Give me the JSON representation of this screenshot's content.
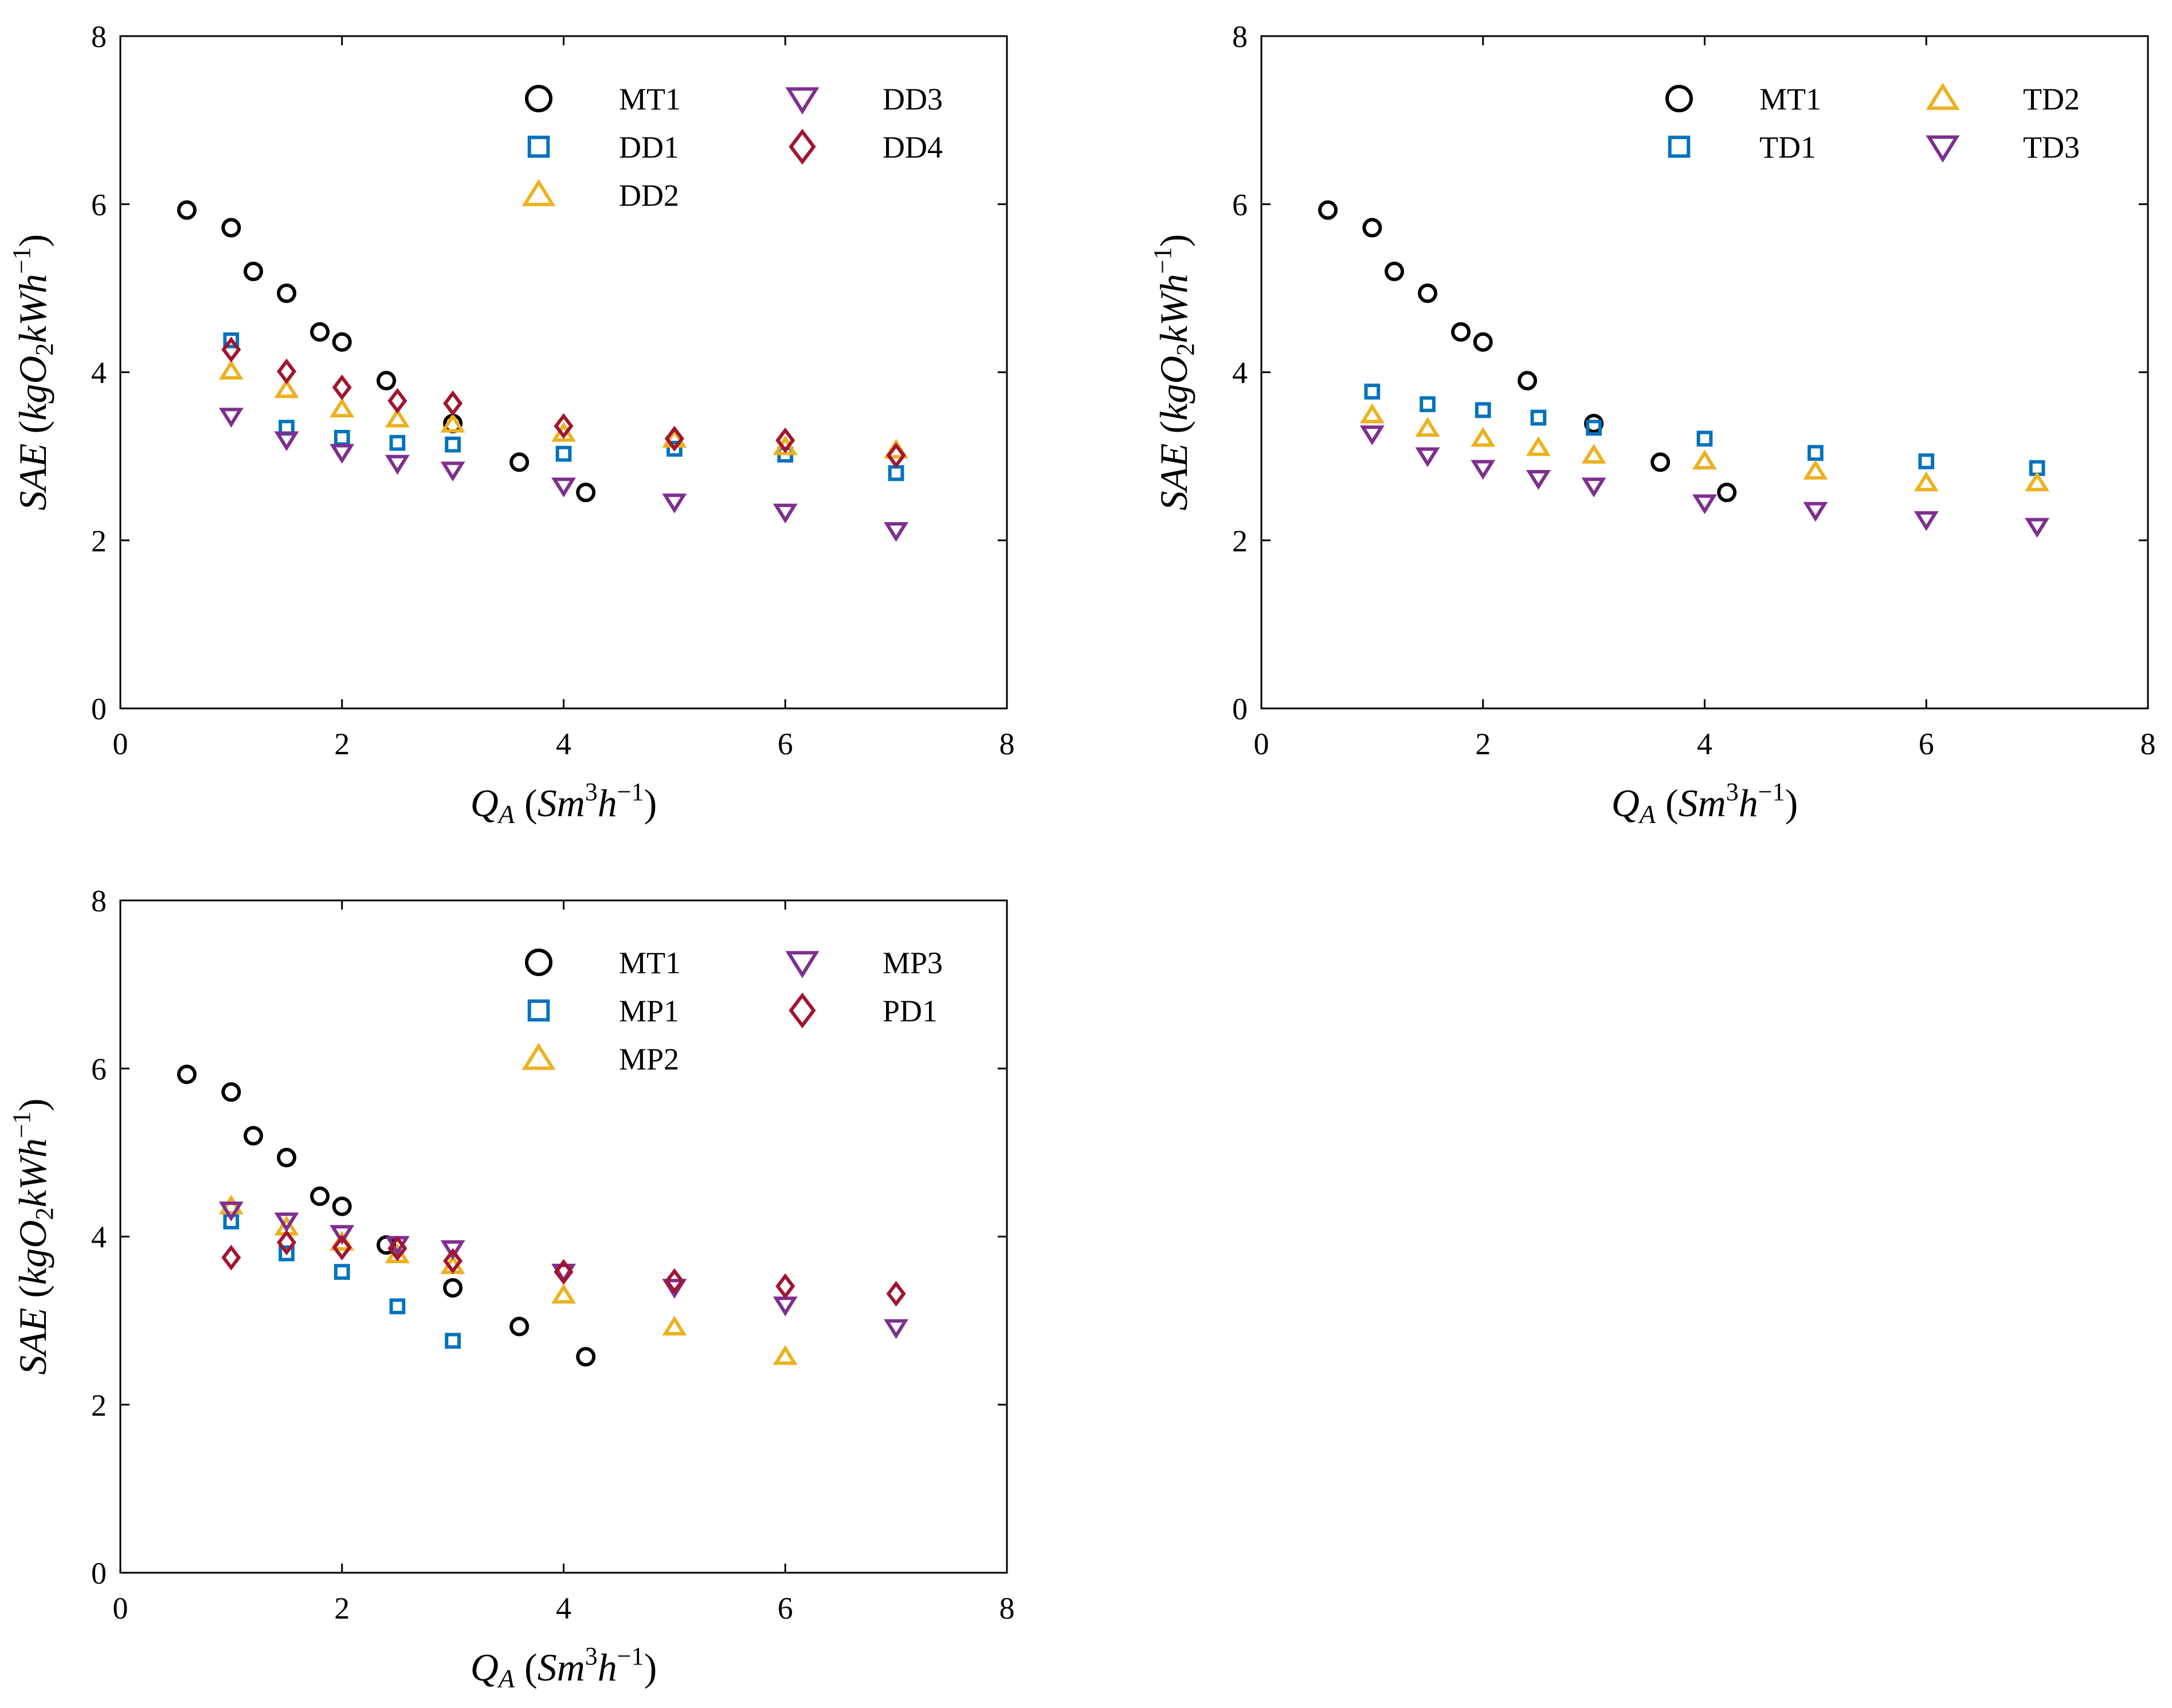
{
  "chart_data": [
    {
      "type": "scatter",
      "panel": "top-left",
      "title": "",
      "xlabel_main": "Q",
      "xlabel_sub": "A",
      "xlabel_unit": "Sm",
      "xlabel_unit_exp": "3",
      "xlabel_unit2": "h",
      "xlabel_unit2_exp": "−1",
      "ylabel_main": "SAE",
      "ylabel_unit": "kgO",
      "ylabel_unit_sub": "2",
      "ylabel_unit2": "kWh",
      "ylabel_unit2_exp": "−1",
      "xlim": [
        0,
        8
      ],
      "ylim": [
        0,
        8
      ],
      "xticks": [
        "0",
        "2",
        "4",
        "6",
        "8"
      ],
      "yticks": [
        "0",
        "2",
        "4",
        "6",
        "8"
      ],
      "legend_position": "top-right",
      "legend_columns": [
        [
          {
            "name": "MT1",
            "marker": "circle",
            "color": "#000000"
          },
          {
            "name": "DD1",
            "marker": "square",
            "color": "#0072BD"
          },
          {
            "name": "DD2",
            "marker": "triangle-up",
            "color": "#EDB120"
          }
        ],
        [
          {
            "name": "DD3",
            "marker": "triangle-down",
            "color": "#7E2F8E"
          },
          {
            "name": "DD4",
            "marker": "diamond",
            "color": "#A2142F"
          }
        ]
      ],
      "series": [
        {
          "name": "MT1",
          "marker": "circle",
          "color": "#000000",
          "x": [
            0.6,
            1.0,
            1.2,
            1.5,
            1.8,
            2.0,
            2.4,
            3.0,
            3.6,
            4.2
          ],
          "y": [
            5.93,
            5.72,
            5.2,
            4.94,
            4.48,
            4.36,
            3.9,
            3.39,
            2.93,
            2.57
          ]
        },
        {
          "name": "DD1",
          "marker": "square",
          "color": "#0072BD",
          "x": [
            1.0,
            1.5,
            2.0,
            2.5,
            3.0,
            4.0,
            5.0,
            6.0,
            7.0
          ],
          "y": [
            4.38,
            3.34,
            3.22,
            3.16,
            3.14,
            3.03,
            3.09,
            3.02,
            2.8
          ]
        },
        {
          "name": "DD2",
          "marker": "triangle-up",
          "color": "#EDB120",
          "x": [
            1.0,
            1.5,
            2.0,
            2.5,
            3.0,
            4.0,
            5.0,
            6.0,
            7.0
          ],
          "y": [
            4.01,
            3.79,
            3.56,
            3.44,
            3.38,
            3.27,
            3.2,
            3.11,
            3.07
          ]
        },
        {
          "name": "DD3",
          "marker": "triangle-down",
          "color": "#7E2F8E",
          "x": [
            1.0,
            1.5,
            2.0,
            2.5,
            3.0,
            4.0,
            5.0,
            6.0,
            7.0
          ],
          "y": [
            3.48,
            3.2,
            3.05,
            2.92,
            2.84,
            2.65,
            2.46,
            2.34,
            2.12
          ]
        },
        {
          "name": "DD4",
          "marker": "diamond",
          "color": "#A2142F",
          "x": [
            1.0,
            1.5,
            2.0,
            2.5,
            3.0,
            4.0,
            5.0,
            6.0,
            7.0
          ],
          "y": [
            4.27,
            4.01,
            3.82,
            3.66,
            3.63,
            3.36,
            3.21,
            3.19,
            3.01
          ]
        }
      ]
    },
    {
      "type": "scatter",
      "panel": "top-right",
      "title": "",
      "xlabel_main": "Q",
      "xlabel_sub": "A",
      "xlabel_unit": "Sm",
      "xlabel_unit_exp": "3",
      "xlabel_unit2": "h",
      "xlabel_unit2_exp": "−1",
      "ylabel_main": "SAE",
      "ylabel_unit": "kgO",
      "ylabel_unit_sub": "2",
      "ylabel_unit2": "kWh",
      "ylabel_unit2_exp": "−1",
      "xlim": [
        0,
        8
      ],
      "ylim": [
        0,
        8
      ],
      "xticks": [
        "0",
        "2",
        "4",
        "6",
        "8"
      ],
      "yticks": [
        "0",
        "2",
        "4",
        "6",
        "8"
      ],
      "legend_position": "top-right",
      "legend_columns": [
        [
          {
            "name": "MT1",
            "marker": "circle",
            "color": "#000000"
          },
          {
            "name": "TD1",
            "marker": "square",
            "color": "#0072BD"
          }
        ],
        [
          {
            "name": "TD2",
            "marker": "triangle-up",
            "color": "#EDB120"
          },
          {
            "name": "TD3",
            "marker": "triangle-down",
            "color": "#7E2F8E"
          }
        ]
      ],
      "series": [
        {
          "name": "MT1",
          "marker": "circle",
          "color": "#000000",
          "x": [
            0.6,
            1.0,
            1.2,
            1.5,
            1.8,
            2.0,
            2.4,
            3.0,
            3.6,
            4.2
          ],
          "y": [
            5.93,
            5.72,
            5.2,
            4.94,
            4.48,
            4.36,
            3.9,
            3.39,
            2.93,
            2.57
          ]
        },
        {
          "name": "TD1",
          "marker": "square",
          "color": "#0072BD",
          "x": [
            1.0,
            1.5,
            2.0,
            2.5,
            3.0,
            4.0,
            5.0,
            6.0,
            7.0
          ],
          "y": [
            3.77,
            3.62,
            3.55,
            3.46,
            3.34,
            3.21,
            3.04,
            2.94,
            2.86
          ]
        },
        {
          "name": "TD2",
          "marker": "triangle-up",
          "color": "#EDB120",
          "x": [
            1.0,
            1.5,
            2.0,
            2.5,
            3.0,
            4.0,
            5.0,
            6.0,
            7.0
          ],
          "y": [
            3.49,
            3.33,
            3.21,
            3.1,
            3.01,
            2.94,
            2.82,
            2.68,
            2.68
          ]
        },
        {
          "name": "TD3",
          "marker": "triangle-down",
          "color": "#7E2F8E",
          "x": [
            1.0,
            1.5,
            2.0,
            2.5,
            3.0,
            4.0,
            5.0,
            6.0,
            7.0
          ],
          "y": [
            3.27,
            3.01,
            2.86,
            2.74,
            2.65,
            2.45,
            2.36,
            2.25,
            2.17
          ]
        }
      ]
    },
    {
      "type": "scatter",
      "panel": "bottom-left",
      "title": "",
      "xlabel_main": "Q",
      "xlabel_sub": "A",
      "xlabel_unit": "Sm",
      "xlabel_unit_exp": "3",
      "xlabel_unit2": "h",
      "xlabel_unit2_exp": "−1",
      "ylabel_main": "SAE",
      "ylabel_unit": "kgO",
      "ylabel_unit_sub": "2",
      "ylabel_unit2": "kWh",
      "ylabel_unit2_exp": "−1",
      "xlim": [
        0,
        8
      ],
      "ylim": [
        0,
        8
      ],
      "xticks": [
        "0",
        "2",
        "4",
        "6",
        "8"
      ],
      "yticks": [
        "0",
        "2",
        "4",
        "6",
        "8"
      ],
      "legend_position": "top-right",
      "legend_columns": [
        [
          {
            "name": "MT1",
            "marker": "circle",
            "color": "#000000"
          },
          {
            "name": "MP1",
            "marker": "square",
            "color": "#0072BD"
          },
          {
            "name": "MP2",
            "marker": "triangle-up",
            "color": "#EDB120"
          }
        ],
        [
          {
            "name": "MP3",
            "marker": "triangle-down",
            "color": "#7E2F8E"
          },
          {
            "name": "PD1",
            "marker": "diamond",
            "color": "#A2142F"
          }
        ]
      ],
      "series": [
        {
          "name": "MT1",
          "marker": "circle",
          "color": "#000000",
          "x": [
            0.6,
            1.0,
            1.2,
            1.5,
            1.8,
            2.0,
            2.4,
            3.0,
            3.6,
            4.2
          ],
          "y": [
            5.93,
            5.72,
            5.2,
            4.94,
            4.48,
            4.36,
            3.9,
            3.39,
            2.93,
            2.57
          ]
        },
        {
          "name": "MP1",
          "marker": "square",
          "color": "#0072BD",
          "x": [
            1.0,
            1.5,
            2.0,
            2.5,
            3.0
          ],
          "y": [
            4.18,
            3.8,
            3.58,
            3.17,
            2.76
          ]
        },
        {
          "name": "MP2",
          "marker": "triangle-up",
          "color": "#EDB120",
          "x": [
            1.0,
            1.5,
            2.0,
            2.5,
            3.0,
            4.0,
            5.0,
            6.0
          ],
          "y": [
            4.36,
            4.11,
            3.93,
            3.78,
            3.65,
            3.3,
            2.92,
            2.57
          ]
        },
        {
          "name": "MP3",
          "marker": "triangle-down",
          "color": "#7E2F8E",
          "x": [
            1.0,
            1.5,
            2.0,
            2.5,
            3.0,
            4.0,
            5.0,
            6.0,
            7.0
          ],
          "y": [
            4.32,
            4.19,
            4.04,
            3.91,
            3.86,
            3.58,
            3.4,
            3.19,
            2.92
          ]
        },
        {
          "name": "PD1",
          "marker": "diamond",
          "color": "#A2142F",
          "x": [
            1.0,
            1.5,
            2.0,
            2.5,
            3.0,
            4.0,
            5.0,
            6.0,
            7.0
          ],
          "y": [
            3.75,
            3.93,
            3.87,
            3.86,
            3.71,
            3.58,
            3.47,
            3.41,
            3.32
          ]
        }
      ]
    }
  ]
}
